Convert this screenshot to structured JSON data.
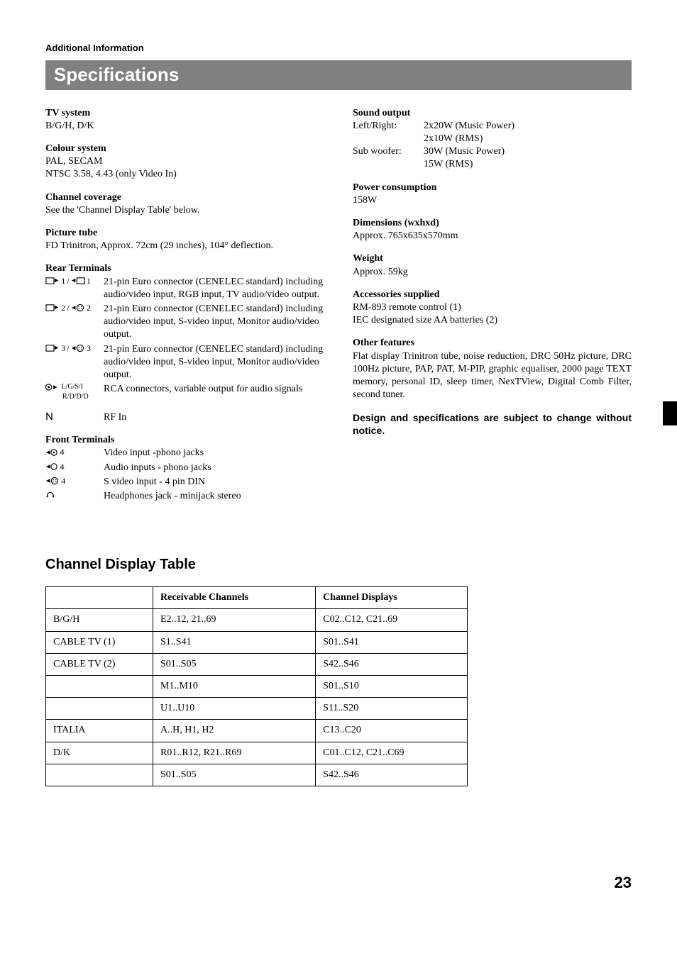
{
  "section_label": "Additional Information",
  "title": "Specifications",
  "left": {
    "tv_system": {
      "h": "TV system",
      "v": "B/G/H, D/K"
    },
    "colour_system": {
      "h": "Colour system",
      "v1": "PAL, SECAM",
      "v2": "NTSC 3.58, 4.43 (only Video In)"
    },
    "channel_coverage": {
      "h": "Channel coverage",
      "v": "See the 'Channel Display Table' below."
    },
    "picture_tube": {
      "h": "Picture tube",
      "v": "FD Trinitron, Approx. 72cm (29 inches), 104° deflection."
    },
    "rear": {
      "h": "Rear Terminals",
      "rows": [
        {
          "label_suffix": "1",
          "desc": "21-pin Euro connector (CENELEC standard) including audio/video input, RGB input, TV audio/video output."
        },
        {
          "label_suffix": "2",
          "desc": "21-pin Euro connector (CENELEC standard) including audio/video input, S-video input, Monitor audio/video output."
        },
        {
          "label_suffix": "3",
          "desc": "21-pin Euro connector (CENELEC standard) including audio/video input, S-video input, Monitor audio/video output."
        }
      ],
      "rca": {
        "sub1": "L/G/S/I",
        "sub2": "R/D/D/D",
        "desc": "RCA connectors, variable output for audio signals"
      },
      "rf": {
        "desc": "RF In"
      }
    },
    "front": {
      "h": "Front Terminals",
      "rows": [
        {
          "suffix": "4",
          "desc": "Video input -phono jacks"
        },
        {
          "suffix": "4",
          "desc": "Audio inputs - phono jacks"
        },
        {
          "suffix": "4",
          "desc": "S video input - 4 pin DIN"
        },
        {
          "suffix": "",
          "desc": "Headphones jack - minijack stereo"
        }
      ]
    }
  },
  "right": {
    "sound": {
      "h": "Sound output",
      "rows": [
        {
          "l": "Left/Right:",
          "v": "2x20W (Music Power)"
        },
        {
          "l": "",
          "v": "2x10W (RMS)"
        },
        {
          "l": "Sub woofer:",
          "v": "30W (Music Power)"
        },
        {
          "l": "",
          "v": "15W (RMS)"
        }
      ]
    },
    "power": {
      "h": "Power consumption",
      "v": "158W"
    },
    "dimensions": {
      "h": "Dimensions (wxhxd)",
      "v": "Approx. 765x635x570mm"
    },
    "weight": {
      "h": "Weight",
      "v": "Approx. 59kg"
    },
    "accessories": {
      "h": "Accessories supplied",
      "v1": "RM-893 remote control (1)",
      "v2": "IEC designated size AA batteries (2)"
    },
    "other": {
      "h": "Other features",
      "v": "Flat display Trinitron tube, noise reduction, DRC 50Hz picture, DRC 100Hz picture, PAP, PAT, M-PIP, graphic equaliser, 2000 page TEXT memory, personal ID, sleep timer, NexTView, Digital Comb Filter, second tuner."
    },
    "notice": "Design and specifications are subject to change without notice."
  },
  "cdt": {
    "heading": "Channel Display Table",
    "columns": [
      "",
      "Receivable Channels",
      "Channel Displays"
    ],
    "rows": [
      [
        "B/G/H",
        "E2..12, 21..69",
        "C02..C12, C21..69"
      ],
      [
        "CABLE TV (1)",
        "S1..S41",
        "S01..S41"
      ],
      [
        "CABLE TV (2)",
        "S01..S05",
        "S42..S46"
      ],
      [
        "",
        "M1..M10",
        "S01..S10"
      ],
      [
        "",
        "U1..U10",
        "S11..S20"
      ],
      [
        "ITALIA",
        "A..H, H1, H2",
        "C13..C20"
      ],
      [
        "D/K",
        "R01..R12, R21..R69",
        "C01..C12, C21..C69"
      ],
      [
        "",
        "S01..S05",
        "S42..S46"
      ]
    ]
  },
  "page_number": "23",
  "slash": "/"
}
